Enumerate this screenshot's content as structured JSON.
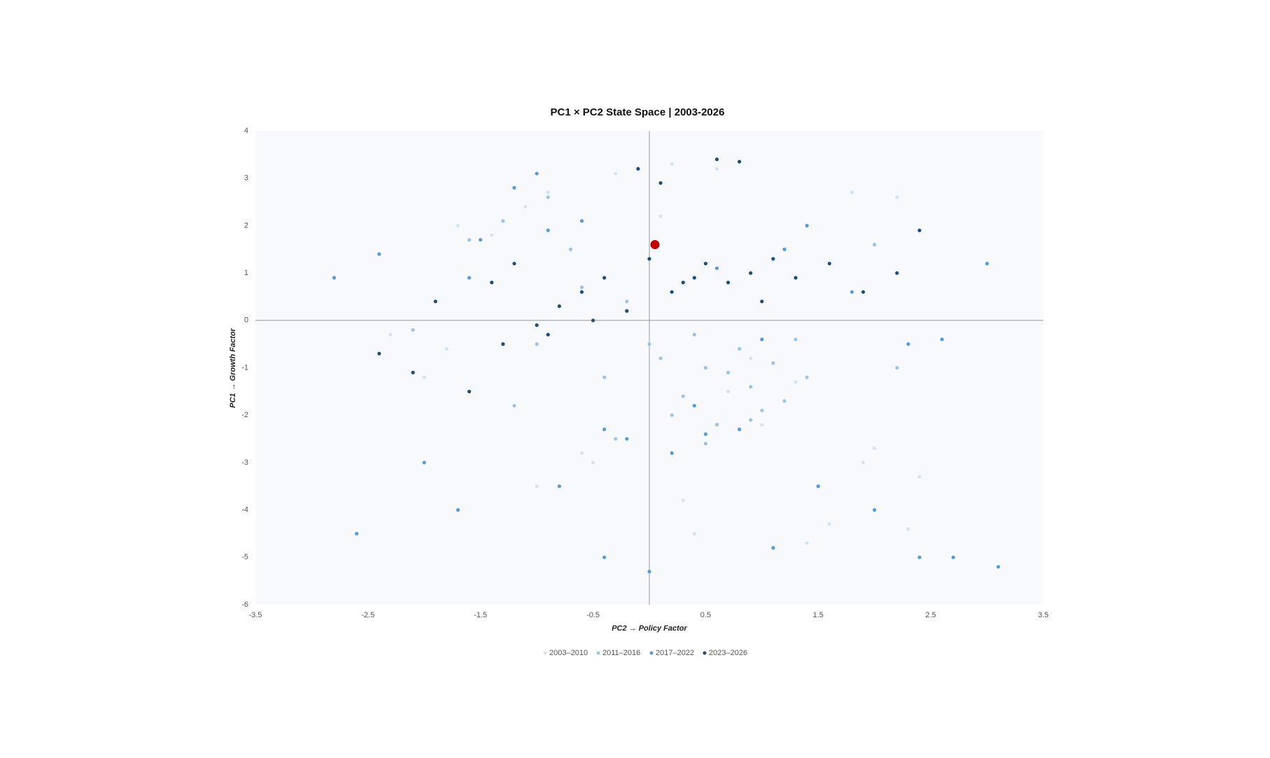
{
  "chart_data": {
    "type": "scatter",
    "title": "PC1 × PC2 State Space  |  2003-2026",
    "x_label": "PC2 → Policy Factor",
    "y_label": "PC1 → Growth Factor",
    "xlim": [
      -3.5,
      3.5
    ],
    "xticks": [
      -3.5,
      -2.5,
      -1.5,
      -0.5,
      0.5,
      1.5,
      2.5,
      3.5
    ],
    "ylim": [
      -6,
      4
    ],
    "yticks": [
      -6,
      -5,
      -4,
      -3,
      -2,
      -1,
      0,
      1,
      2,
      3,
      4
    ],
    "legend": "bottom",
    "series": [
      {
        "name": "2003–2010",
        "color": "#d6e4f2",
        "x": [
          -2.3,
          -2.0,
          -1.7,
          -1.4,
          -1.1,
          -0.9,
          -0.6,
          -0.3,
          0.1,
          0.3,
          0.5,
          0.7,
          0.9,
          1.1,
          1.3,
          1.6,
          1.8,
          2.0,
          2.2,
          2.4,
          -1.0,
          -0.5,
          0.2,
          0.6,
          1.0,
          1.4,
          1.9,
          2.3,
          -1.8,
          0.4
        ],
        "y": [
          -0.3,
          -1.2,
          2.0,
          1.8,
          2.4,
          2.7,
          -2.8,
          3.1,
          2.2,
          -3.8,
          -1.0,
          -1.5,
          -0.8,
          -4.8,
          -1.3,
          -4.3,
          2.7,
          -2.7,
          2.6,
          -3.3,
          -3.5,
          -3.0,
          3.3,
          3.2,
          -2.2,
          -4.7,
          -3.0,
          -4.4,
          -0.6,
          -4.5
        ]
      },
      {
        "name": "2011–2016",
        "color": "#9dc3e6",
        "x": [
          -1.6,
          -1.3,
          -1.0,
          -0.7,
          -0.4,
          -0.2,
          0.1,
          0.3,
          0.5,
          0.6,
          0.8,
          0.9,
          1.1,
          1.2,
          1.4,
          -0.9,
          -0.6,
          0.2,
          0.4,
          0.7,
          1.0,
          1.3,
          -1.2,
          -0.3,
          0.5,
          2.0,
          2.2,
          -2.1,
          0.0,
          0.9
        ],
        "y": [
          1.7,
          2.1,
          -0.5,
          1.5,
          -1.2,
          0.4,
          -0.8,
          -1.6,
          -1.0,
          -2.2,
          -0.6,
          -1.4,
          -0.9,
          -1.7,
          -1.2,
          2.6,
          0.7,
          -2.0,
          -0.3,
          -1.1,
          -1.9,
          -0.4,
          -1.8,
          -2.5,
          -2.6,
          1.6,
          -1.0,
          -0.2,
          -0.5,
          -2.1
        ]
      },
      {
        "name": "2017–2022",
        "color": "#5b9bd5",
        "x": [
          -2.8,
          -2.4,
          -2.0,
          -1.7,
          -1.5,
          -1.2,
          -1.0,
          -0.8,
          -0.6,
          -0.4,
          -0.2,
          0.0,
          0.2,
          0.4,
          0.6,
          0.8,
          1.0,
          1.2,
          1.5,
          1.8,
          2.0,
          2.3,
          2.6,
          3.0,
          3.1,
          -2.6,
          -1.6,
          -0.4,
          1.1,
          2.7,
          0.5,
          -0.9,
          2.4,
          1.4
        ],
        "y": [
          0.9,
          1.4,
          -3.0,
          -4.0,
          1.7,
          2.8,
          3.1,
          -3.5,
          2.1,
          -5.0,
          -2.5,
          -5.3,
          -2.8,
          -1.8,
          1.1,
          -2.3,
          -0.4,
          1.5,
          -3.5,
          0.6,
          -4.0,
          -0.5,
          -0.4,
          1.2,
          -5.2,
          -4.5,
          0.9,
          -2.3,
          -4.8,
          -5.0,
          -2.4,
          1.9,
          -5.0,
          2.0
        ]
      },
      {
        "name": "2023–2026",
        "color": "#1f4e79",
        "x": [
          -2.4,
          -2.1,
          -1.9,
          -1.6,
          -1.4,
          -1.2,
          -1.0,
          -0.8,
          -0.6,
          -0.4,
          -0.2,
          0.0,
          0.2,
          0.4,
          0.5,
          0.7,
          0.9,
          1.1,
          1.3,
          1.6,
          1.9,
          2.2,
          2.4,
          -0.1,
          0.3,
          -0.9,
          0.6,
          0.8,
          -1.3,
          1.0,
          0.1,
          -0.5
        ],
        "y": [
          -0.7,
          -1.1,
          0.4,
          -1.5,
          0.8,
          1.2,
          -0.1,
          0.3,
          0.6,
          0.9,
          0.2,
          1.3,
          0.6,
          0.9,
          1.2,
          0.8,
          1.0,
          1.3,
          0.9,
          1.2,
          0.6,
          1.0,
          1.9,
          3.2,
          0.8,
          -0.3,
          3.4,
          3.35,
          -0.5,
          0.4,
          2.9,
          0.0
        ]
      }
    ],
    "highlight": {
      "x": 0.05,
      "y": 1.6,
      "color": "#c00000"
    }
  }
}
